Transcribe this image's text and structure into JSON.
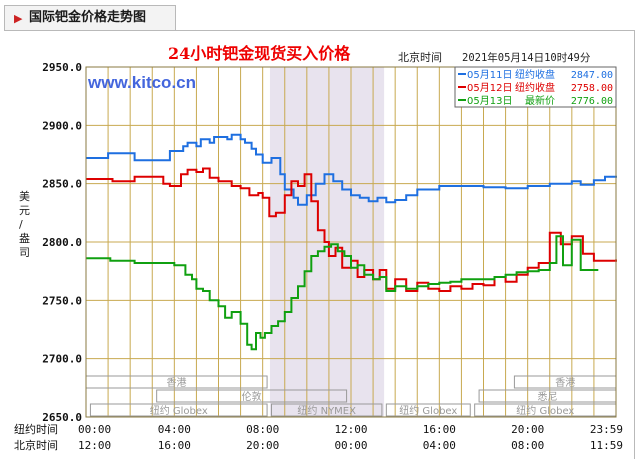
{
  "header": {
    "title": "国际钯金价格走势图"
  },
  "chart_data": {
    "type": "line",
    "title": "24小时钯金现货买入价格",
    "timezone_label": "北京时间",
    "timestamp": "2021年05月14日10时49分",
    "watermark": "www.kitco.cn",
    "ylabel": "美元/盎司",
    "ylim": [
      2650,
      2950
    ],
    "yticks": [
      "2650.0",
      "2700.0",
      "2750.0",
      "2800.0",
      "2850.0",
      "2900.0",
      "2950.0"
    ],
    "xlim": [
      0,
      24
    ],
    "x_rows": [
      {
        "label": "纽约时间",
        "ticks": [
          "00:00",
          "04:00",
          "08:00",
          "12:00",
          "16:00",
          "20:00",
          "23:59"
        ]
      },
      {
        "label": "北京时间",
        "ticks": [
          "12:00",
          "16:00",
          "20:00",
          "00:00",
          "04:00",
          "08:00",
          "11:59"
        ]
      }
    ],
    "sessions": [
      {
        "label": "香港",
        "row": 0
      },
      {
        "label": "伦敦",
        "row": 1
      },
      {
        "label": "纽约 Globex",
        "row": 2
      },
      {
        "label": "纽约 NYMEX",
        "row": 2
      },
      {
        "label": "纽约 Globex",
        "row": 2
      },
      {
        "label": "香港",
        "row": 0
      },
      {
        "label": "悉尼",
        "row": 1
      },
      {
        "label": "纽约 Globex",
        "row": 2
      }
    ],
    "colors": {
      "blue": "#1e6fe0",
      "red": "#dd0000",
      "green": "#10a010",
      "grid": "#c8a950",
      "shade": "#e8e3ee"
    },
    "legend": [
      {
        "date": "05月11日",
        "desc": "纽约收盘",
        "value": "2847.00",
        "color": "#1e6fe0"
      },
      {
        "date": "05月12日",
        "desc": "纽约收盘",
        "value": "2758.00",
        "color": "#dd0000"
      },
      {
        "date": "05月13日",
        "desc": "最新价",
        "value": "2776.00",
        "color": "#10a010"
      }
    ],
    "series": [
      {
        "color": "#1e6fe0",
        "x": [
          0,
          0.9,
          1.0,
          2.0,
          2.2,
          3.6,
          3.8,
          4.4,
          4.6,
          5.0,
          5.2,
          5.6,
          5.8,
          6.4,
          6.6,
          7.0,
          7.2,
          7.5,
          7.7,
          8.0,
          8.4,
          8.8,
          9.0,
          9.4,
          9.6,
          10.0,
          10.4,
          10.8,
          11.2,
          11.6,
          12.0,
          12.4,
          12.8,
          13.2,
          13.6,
          14.0,
          14.5,
          15.0,
          16.0,
          18.0,
          19.0,
          20.0,
          21.0,
          22.0,
          22.4,
          23.0,
          23.5,
          24.0
        ],
        "y": [
          2872,
          2872,
          2876,
          2876,
          2870,
          2870,
          2878,
          2882,
          2885,
          2882,
          2888,
          2885,
          2890,
          2888,
          2892,
          2888,
          2885,
          2880,
          2875,
          2868,
          2872,
          2858,
          2845,
          2838,
          2832,
          2840,
          2850,
          2858,
          2852,
          2845,
          2840,
          2838,
          2835,
          2838,
          2834,
          2836,
          2840,
          2845,
          2848,
          2847,
          2846,
          2848,
          2850,
          2852,
          2849,
          2853,
          2856,
          2855
        ]
      },
      {
        "color": "#dd0000",
        "x": [
          0,
          1.0,
          1.2,
          2.0,
          2.2,
          3.0,
          3.5,
          3.8,
          4.3,
          4.6,
          5.0,
          5.3,
          5.6,
          6.0,
          6.6,
          7.0,
          7.4,
          7.8,
          8.0,
          8.3,
          8.6,
          9.0,
          9.3,
          9.6,
          9.9,
          10.2,
          10.5,
          10.8,
          11.0,
          11.3,
          11.6,
          12.0,
          12.3,
          12.6,
          13.0,
          13.3,
          13.6,
          14.0,
          14.5,
          15.0,
          15.5,
          16.0,
          16.5,
          17.0,
          17.5,
          18.0,
          18.5,
          19.0,
          19.5,
          20.0,
          20.5,
          21.0,
          21.5,
          22.0,
          22.5,
          23.0,
          24.0
        ],
        "y": [
          2854,
          2854,
          2852,
          2852,
          2856,
          2856,
          2850,
          2848,
          2858,
          2862,
          2860,
          2863,
          2855,
          2852,
          2848,
          2846,
          2840,
          2842,
          2838,
          2822,
          2825,
          2840,
          2852,
          2848,
          2858,
          2835,
          2810,
          2800,
          2788,
          2795,
          2778,
          2784,
          2770,
          2776,
          2768,
          2776,
          2760,
          2768,
          2758,
          2765,
          2760,
          2758,
          2762,
          2760,
          2764,
          2763,
          2770,
          2766,
          2772,
          2778,
          2782,
          2808,
          2798,
          2805,
          2790,
          2784,
          2785
        ]
      },
      {
        "color": "#10a010",
        "x": [
          0,
          0.9,
          1.1,
          2.0,
          2.2,
          3.6,
          4.0,
          4.5,
          4.8,
          5.0,
          5.3,
          5.6,
          6.0,
          6.3,
          6.6,
          7.0,
          7.3,
          7.5,
          7.7,
          7.9,
          8.1,
          8.4,
          8.7,
          9.0,
          9.3,
          9.6,
          9.9,
          10.2,
          10.5,
          10.8,
          11.1,
          11.4,
          11.7,
          12.0,
          12.3,
          12.6,
          13.0,
          13.3,
          13.6,
          14.0,
          14.5,
          15.0,
          15.5,
          16.0,
          16.5,
          17.0,
          18.0,
          18.5,
          19.0,
          19.5,
          20.0,
          20.5,
          21.0,
          21.3,
          21.6,
          22.0,
          22.4,
          22.8,
          23.2
        ],
        "y": [
          2786,
          2786,
          2784,
          2784,
          2782,
          2782,
          2780,
          2772,
          2768,
          2760,
          2758,
          2750,
          2745,
          2735,
          2740,
          2730,
          2712,
          2708,
          2722,
          2718,
          2722,
          2728,
          2732,
          2740,
          2752,
          2762,
          2775,
          2788,
          2792,
          2796,
          2798,
          2792,
          2788,
          2778,
          2780,
          2772,
          2768,
          2770,
          2758,
          2762,
          2760,
          2762,
          2764,
          2765,
          2766,
          2768,
          2768,
          2770,
          2772,
          2774,
          2775,
          2776,
          2782,
          2805,
          2780,
          2802,
          2776,
          2776,
          2776
        ]
      }
    ]
  }
}
